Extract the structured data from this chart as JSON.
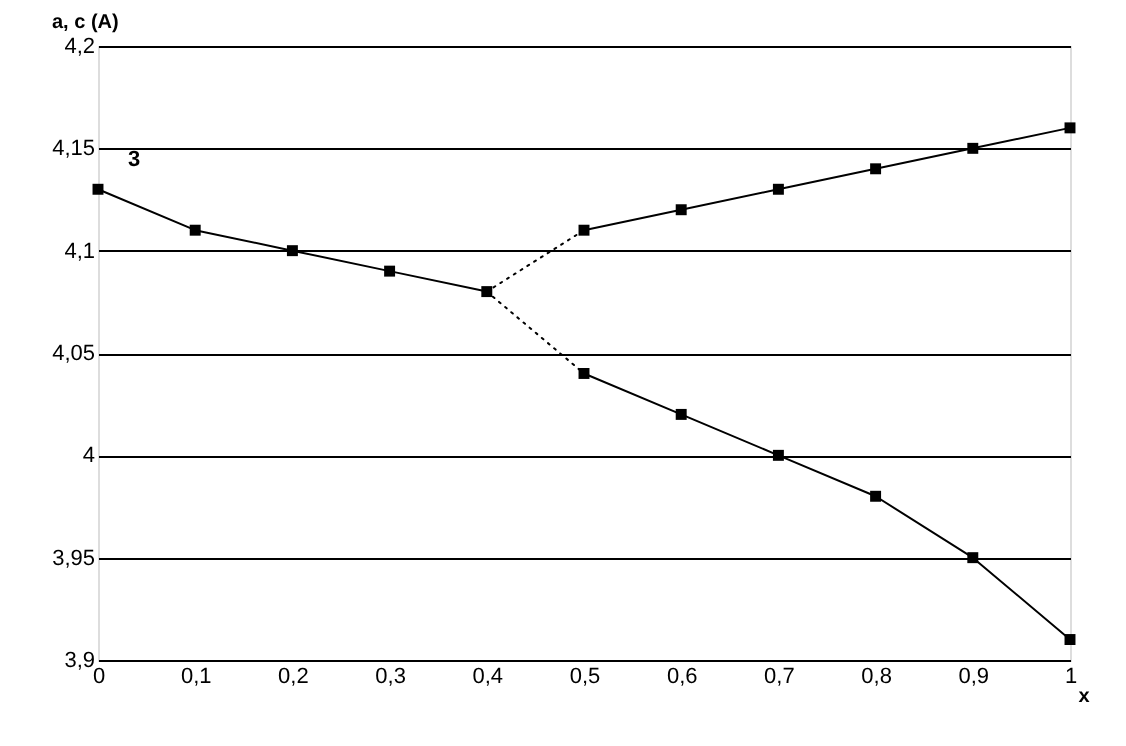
{
  "chart_data": {
    "type": "line",
    "xlabel": "x",
    "ylabel": "a, c (A)",
    "xlim": [
      0,
      1
    ],
    "ylim": [
      3.9,
      4.2
    ],
    "xticks": [
      0,
      {
        "value": 0.1,
        "label": "0,1"
      },
      {
        "value": 0.2,
        "label": "0,2"
      },
      {
        "value": 0.3,
        "label": "0,3"
      },
      {
        "value": 0.4,
        "label": "0,4"
      },
      {
        "value": 0.5,
        "label": "0,5"
      },
      {
        "value": 0.6,
        "label": "0,6"
      },
      {
        "value": 0.7,
        "label": "0,7"
      },
      {
        "value": 0.8,
        "label": "0,8"
      },
      {
        "value": 0.9,
        "label": "0,9"
      },
      1
    ],
    "yticks": [
      {
        "value": 3.9,
        "label": "3,9"
      },
      {
        "value": 3.95,
        "label": "3,95"
      },
      4,
      {
        "value": 4.05,
        "label": "4,05"
      },
      {
        "value": 4.1,
        "label": "4,1"
      },
      {
        "value": 4.15,
        "label": "4,15"
      },
      {
        "value": 4.2,
        "label": "4,2"
      }
    ],
    "grid": "y",
    "series": [
      {
        "color": "#000000",
        "marker": "square",
        "line_style": "solid",
        "x": [
          0,
          0.1,
          0.2,
          0.3,
          0.4
        ],
        "values": [
          4.13,
          4.11,
          4.1,
          4.09,
          4.08
        ]
      },
      {
        "color": "#000000",
        "line_style": "dotted",
        "x": [
          0.4,
          0.5
        ],
        "values": [
          4.08,
          4.11
        ]
      },
      {
        "color": "#000000",
        "line_style": "dotted",
        "x": [
          0.4,
          0.5
        ],
        "values": [
          4.08,
          4.04
        ]
      },
      {
        "color": "#000000",
        "marker": "square",
        "line_style": "solid",
        "x": [
          0.5,
          0.6,
          0.7,
          0.8,
          0.9,
          1
        ],
        "values": [
          4.11,
          4.12,
          4.13,
          4.14,
          4.15,
          4.16
        ]
      },
      {
        "color": "#000000",
        "marker": "square",
        "line_style": "solid",
        "x": [
          0.5,
          0.6,
          0.7,
          0.8,
          0.9,
          1
        ],
        "values": [
          4.04,
          4.02,
          4.0,
          3.98,
          3.95,
          3.91
        ]
      }
    ],
    "annotations": [
      "3"
    ]
  }
}
